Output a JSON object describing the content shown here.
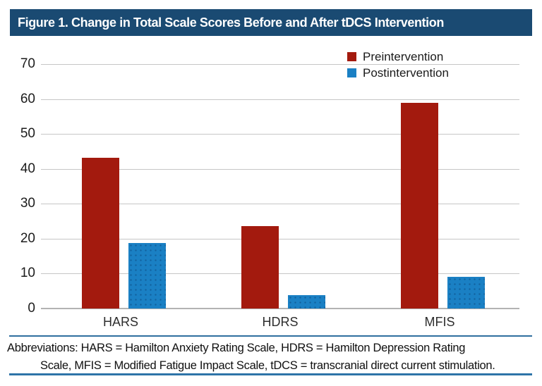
{
  "figure": {
    "title": "Figure 1. Change in Total Scale Scores Before and After tDCS Intervention",
    "footnote_line1": "Abbreviations: HARS = Hamilton Anxiety Rating Scale, HDRS = Hamilton Depression Rating",
    "footnote_line2": "Scale, MFIS = Modified Fatigue Impact Scale, tDCS = transcranial direct current stimulation."
  },
  "colors": {
    "title_bar_bg": "#1a4a72",
    "title_text": "#ffffff",
    "preintervention": "#a31a0e",
    "postintervention": "#1a80c4",
    "gridline": "#c6c6c6",
    "axis_baseline": "#b3b3b3",
    "footnote_rule_top": "#2f6f9f",
    "footnote_rule_bottom": "#2e74a8"
  },
  "chart_data": {
    "type": "bar",
    "categories": [
      "HARS",
      "HDRS",
      "MFIS"
    ],
    "series": [
      {
        "name": "Preintervention",
        "color": "#a31a0e",
        "values": [
          43.2,
          23.7,
          58.9
        ]
      },
      {
        "name": "Postintervention",
        "color": "#1a80c4",
        "values": [
          18.8,
          3.9,
          9.0
        ]
      }
    ],
    "title": "Figure 1. Change in Total Scale Scores Before and After tDCS Intervention",
    "xlabel": "",
    "ylabel": "",
    "ylim": [
      0,
      70
    ],
    "yticks": [
      0,
      10,
      20,
      30,
      40,
      50,
      60,
      70
    ],
    "grid": true,
    "legend_position": "top-right"
  }
}
